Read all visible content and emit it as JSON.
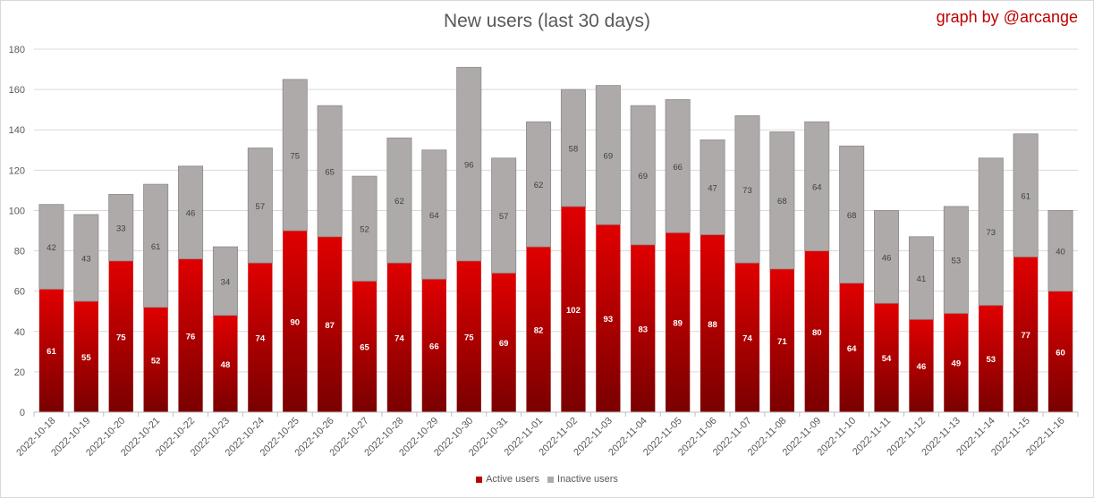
{
  "chart_data": {
    "type": "bar",
    "stacked": true,
    "title": "New users (last 30 days)",
    "credit": "graph by @arcange",
    "categories": [
      "2022-10-18",
      "2022-10-19",
      "2022-10-20",
      "2022-10-21",
      "2022-10-22",
      "2022-10-23",
      "2022-10-24",
      "2022-10-25",
      "2022-10-26",
      "2022-10-27",
      "2022-10-28",
      "2022-10-29",
      "2022-10-30",
      "2022-10-31",
      "2022-11-01",
      "2022-11-02",
      "2022-11-03",
      "2022-11-04",
      "2022-11-05",
      "2022-11-06",
      "2022-11-07",
      "2022-11-08",
      "2022-11-09",
      "2022-11-10",
      "2022-11-11",
      "2022-11-12",
      "2022-11-13",
      "2022-11-14",
      "2022-11-15",
      "2022-11-16"
    ],
    "series": [
      {
        "name": "Active users",
        "color": "#c00000",
        "values": [
          61,
          55,
          75,
          52,
          76,
          48,
          74,
          90,
          87,
          65,
          74,
          66,
          75,
          69,
          82,
          102,
          93,
          83,
          89,
          88,
          74,
          71,
          80,
          64,
          54,
          46,
          49,
          53,
          77,
          60
        ]
      },
      {
        "name": "Inactive users",
        "color": "#aeaaaa",
        "values": [
          42,
          43,
          33,
          61,
          46,
          34,
          57,
          75,
          65,
          52,
          62,
          64,
          96,
          57,
          62,
          58,
          69,
          69,
          66,
          47,
          73,
          68,
          64,
          68,
          46,
          41,
          53,
          73,
          61,
          40
        ]
      }
    ],
    "ylim": [
      0,
      180
    ],
    "yticks": [
      0,
      20,
      40,
      60,
      80,
      100,
      120,
      140,
      160,
      180
    ],
    "grid": true,
    "legend_position": "bottom"
  }
}
